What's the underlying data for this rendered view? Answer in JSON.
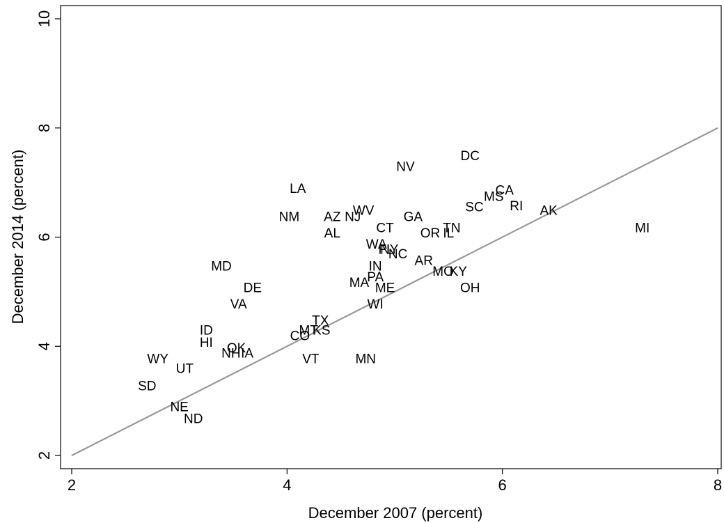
{
  "chart_data": {
    "type": "scatter",
    "xlabel": "December 2007 (percent)",
    "ylabel": "December 2014 (percent)",
    "xlim": [
      2,
      8
    ],
    "ylim": [
      2,
      10
    ],
    "xticks": [
      2,
      4,
      6,
      8
    ],
    "yticks": [
      2,
      4,
      6,
      8,
      10
    ],
    "grid": false,
    "reference_line": {
      "from": [
        2,
        2
      ],
      "to": [
        8,
        8
      ],
      "color": "#999999"
    },
    "points": [
      {
        "label": "DC",
        "x": 5.7,
        "y": 7.5
      },
      {
        "label": "NV",
        "x": 5.1,
        "y": 7.3
      },
      {
        "label": "LA",
        "x": 4.1,
        "y": 6.9
      },
      {
        "label": "CA",
        "x": 6.02,
        "y": 6.87
      },
      {
        "label": "MS",
        "x": 5.92,
        "y": 6.75
      },
      {
        "label": "SC",
        "x": 5.74,
        "y": 6.56
      },
      {
        "label": "RI",
        "x": 6.13,
        "y": 6.58
      },
      {
        "label": "AK",
        "x": 6.43,
        "y": 6.5
      },
      {
        "label": "NM",
        "x": 4.02,
        "y": 6.38
      },
      {
        "label": "AZ",
        "x": 4.42,
        "y": 6.38
      },
      {
        "label": "NJ",
        "x": 4.61,
        "y": 6.38
      },
      {
        "label": "WV",
        "x": 4.71,
        "y": 6.5
      },
      {
        "label": "GA",
        "x": 5.17,
        "y": 6.38
      },
      {
        "label": "CT",
        "x": 4.91,
        "y": 6.18
      },
      {
        "label": "AL",
        "x": 4.42,
        "y": 6.08
      },
      {
        "label": "TN",
        "x": 5.53,
        "y": 6.18
      },
      {
        "label": "OR",
        "x": 5.33,
        "y": 6.08
      },
      {
        "label": "IL",
        "x": 5.5,
        "y": 6.08
      },
      {
        "label": "MI",
        "x": 7.3,
        "y": 6.18
      },
      {
        "label": "WA",
        "x": 4.83,
        "y": 5.88
      },
      {
        "label": "FL",
        "x": 4.92,
        "y": 5.78
      },
      {
        "label": "NY",
        "x": 4.95,
        "y": 5.78
      },
      {
        "label": "NC",
        "x": 5.03,
        "y": 5.7
      },
      {
        "label": "AR",
        "x": 5.27,
        "y": 5.58
      },
      {
        "label": "IN",
        "x": 4.82,
        "y": 5.48
      },
      {
        "label": "MO",
        "x": 5.45,
        "y": 5.38
      },
      {
        "label": "KY",
        "x": 5.59,
        "y": 5.38
      },
      {
        "label": "PA",
        "x": 4.82,
        "y": 5.28
      },
      {
        "label": "MA",
        "x": 4.67,
        "y": 5.18
      },
      {
        "label": "ME",
        "x": 4.91,
        "y": 5.08
      },
      {
        "label": "OH",
        "x": 5.7,
        "y": 5.08
      },
      {
        "label": "MD",
        "x": 3.39,
        "y": 5.48
      },
      {
        "label": "DE",
        "x": 3.68,
        "y": 5.08
      },
      {
        "label": "VA",
        "x": 3.55,
        "y": 4.78
      },
      {
        "label": "WI",
        "x": 4.82,
        "y": 4.78
      },
      {
        "label": "TX",
        "x": 4.31,
        "y": 4.48
      },
      {
        "label": "MT",
        "x": 4.2,
        "y": 4.3
      },
      {
        "label": "KS",
        "x": 4.32,
        "y": 4.3
      },
      {
        "label": "CO",
        "x": 4.12,
        "y": 4.2
      },
      {
        "label": "ID",
        "x": 3.25,
        "y": 4.3
      },
      {
        "label": "HI",
        "x": 3.25,
        "y": 4.08
      },
      {
        "label": "OK",
        "x": 3.53,
        "y": 3.98
      },
      {
        "label": "NH",
        "x": 3.48,
        "y": 3.88
      },
      {
        "label": "IA",
        "x": 3.63,
        "y": 3.88
      },
      {
        "label": "VT",
        "x": 4.22,
        "y": 3.78
      },
      {
        "label": "MN",
        "x": 4.73,
        "y": 3.78
      },
      {
        "label": "WY",
        "x": 2.8,
        "y": 3.78
      },
      {
        "label": "UT",
        "x": 3.05,
        "y": 3.6
      },
      {
        "label": "SD",
        "x": 2.7,
        "y": 3.28
      },
      {
        "label": "NE",
        "x": 3.0,
        "y": 2.9
      },
      {
        "label": "ND",
        "x": 3.13,
        "y": 2.68
      }
    ]
  }
}
